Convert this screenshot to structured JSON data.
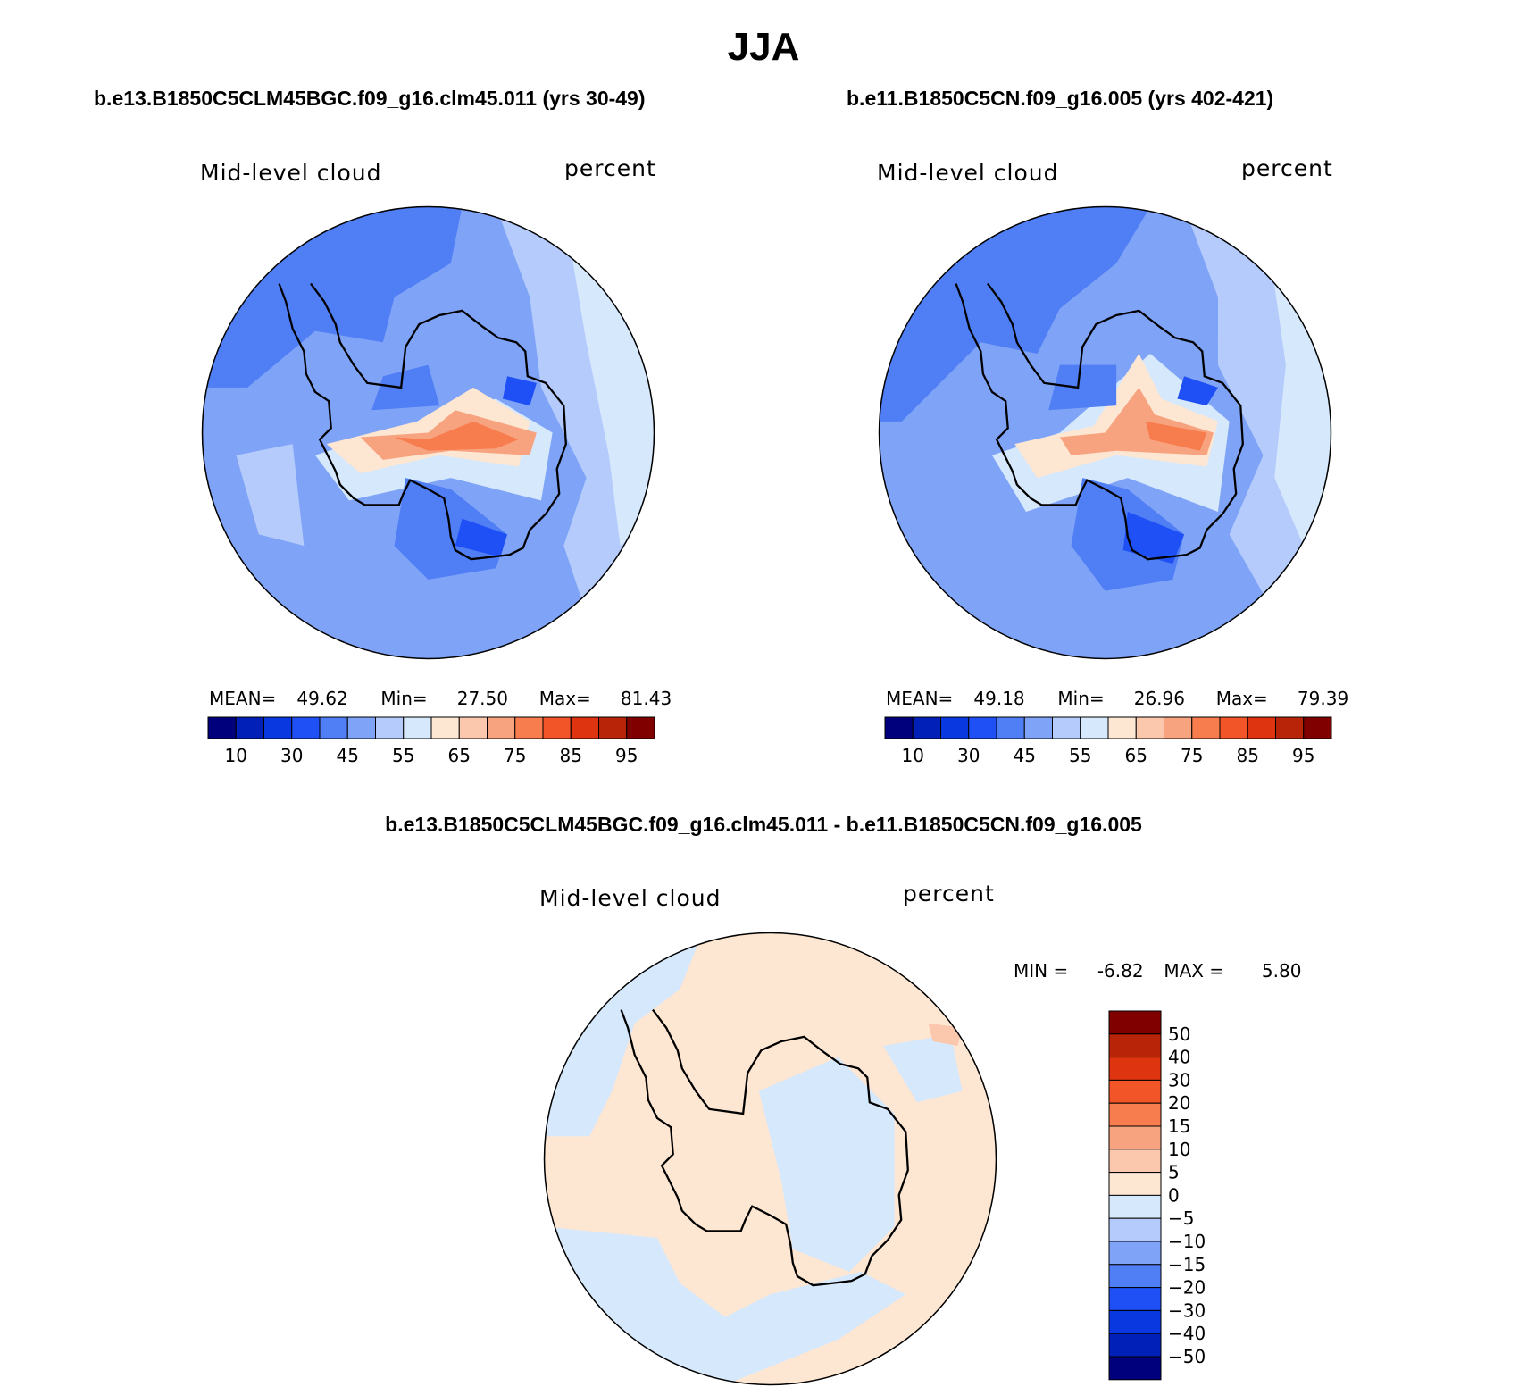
{
  "page": {
    "title": "JJA",
    "diff_title": "b.e13.B1850C5CLM45BGC.f09_g16.clm45.011 - b.e11.B1850C5CN.f09_g16.005"
  },
  "chart_data": [
    {
      "type": "heatmap",
      "projection": "south polar stereographic",
      "title": "b.e13.B1850C5CLM45BGC.f09_g16.clm45.011 (yrs 30-49)",
      "variable": "Mid-level cloud",
      "units": "percent",
      "mean_label": "MEAN=",
      "mean": "49.62",
      "min_label": "Min=",
      "min": "27.50",
      "max_label": "Max=",
      "max": "81.43",
      "colorbar_levels": [
        10,
        20,
        30,
        40,
        45,
        50,
        55,
        60,
        65,
        70,
        75,
        80,
        85,
        90,
        95
      ],
      "colorbar_tick_labels": [
        "10",
        "30",
        "45",
        "55",
        "65",
        "75",
        "85",
        "95"
      ],
      "colors": [
        "#00007d",
        "#0020b8",
        "#0a38e0",
        "#1e50f5",
        "#4f7ef5",
        "#7fa3f7",
        "#b4cbfb",
        "#d6e8fc",
        "#fde6d2",
        "#fbc8ae",
        "#f8a37f",
        "#f77d4e",
        "#f25527",
        "#de3510",
        "#b82407",
        "#800000"
      ]
    },
    {
      "type": "heatmap",
      "projection": "south polar stereographic",
      "title": "b.e11.B1850C5CN.f09_g16.005 (yrs 402-421)",
      "variable": "Mid-level cloud",
      "units": "percent",
      "mean_label": "MEAN=",
      "mean": "49.18",
      "min_label": "Min=",
      "min": "26.96",
      "max_label": "Max=",
      "max": "79.39",
      "colorbar_levels": [
        10,
        20,
        30,
        40,
        45,
        50,
        55,
        60,
        65,
        70,
        75,
        80,
        85,
        90,
        95
      ],
      "colorbar_tick_labels": [
        "10",
        "30",
        "45",
        "55",
        "65",
        "75",
        "85",
        "95"
      ],
      "colors": [
        "#00007d",
        "#0020b8",
        "#0a38e0",
        "#1e50f5",
        "#4f7ef5",
        "#7fa3f7",
        "#b4cbfb",
        "#d6e8fc",
        "#fde6d2",
        "#fbc8ae",
        "#f8a37f",
        "#f77d4e",
        "#f25527",
        "#de3510",
        "#b82407",
        "#800000"
      ]
    },
    {
      "type": "heatmap",
      "projection": "south polar stereographic",
      "title": "b.e13.B1850C5CLM45BGC.f09_g16.clm45.011 - b.e11.B1850C5CN.f09_g16.005",
      "variable": "Mid-level cloud",
      "units": "percent",
      "min_label": "MIN =",
      "min": "-6.82",
      "max_label": "MAX =",
      "max": "5.80",
      "colorbar_tick_labels": [
        "50",
        "40",
        "30",
        "20",
        "15",
        "10",
        "5",
        "0",
        "−5",
        "−10",
        "−15",
        "−20",
        "−30",
        "−40",
        "−50"
      ],
      "colors": [
        "#800000",
        "#b82407",
        "#de3510",
        "#f25527",
        "#f77d4e",
        "#f8a37f",
        "#fbc8ae",
        "#fde6d2",
        "#d6e8fc",
        "#b4cbfb",
        "#7fa3f7",
        "#4f7ef5",
        "#1e50f5",
        "#0a38e0",
        "#0020b8",
        "#00007d"
      ]
    }
  ]
}
